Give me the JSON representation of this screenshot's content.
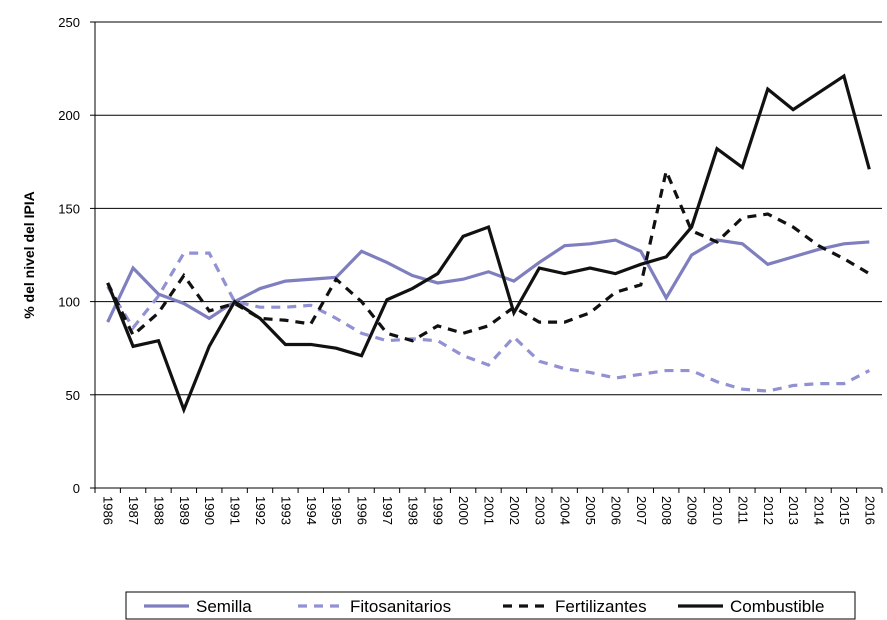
{
  "chart_data": {
    "type": "line",
    "y_label": "% del nivel del IPIA",
    "categories": [
      "1986",
      "1987",
      "1988",
      "1989",
      "1990",
      "1991",
      "1992",
      "1993",
      "1994",
      "1995",
      "1996",
      "1997",
      "1998",
      "1999",
      "2000",
      "2001",
      "2002",
      "2003",
      "2004",
      "2005",
      "2006",
      "2007",
      "2008",
      "2009",
      "2010",
      "2011",
      "2012",
      "2013",
      "2014",
      "2015",
      "2016"
    ],
    "ylim": [
      0,
      250
    ],
    "yticks": [
      0,
      50,
      100,
      150,
      200,
      250
    ],
    "grid": true,
    "series": [
      {
        "name": "Semilla",
        "color": "#7f7fbf",
        "dashed": false,
        "values": [
          89,
          118,
          104,
          99,
          91,
          100,
          107,
          111,
          112,
          113,
          127,
          121,
          114,
          110,
          112,
          116,
          111,
          121,
          130,
          131,
          133,
          127,
          102,
          125,
          133,
          131,
          120,
          124,
          128,
          131,
          132
        ]
      },
      {
        "name": "Fitosanitarios",
        "color": "#9191d3",
        "dashed": true,
        "values": [
          108,
          86,
          103,
          126,
          126,
          100,
          97,
          97,
          98,
          91,
          83,
          79,
          80,
          79,
          71,
          66,
          81,
          68,
          64,
          62,
          59,
          61,
          63,
          63,
          57,
          53,
          52,
          55,
          56,
          56,
          63
        ]
      },
      {
        "name": "Fertilizantes",
        "color": "#111111",
        "dashed": true,
        "values": [
          110,
          82,
          94,
          114,
          95,
          99,
          91,
          90,
          88,
          112,
          100,
          83,
          79,
          87,
          83,
          87,
          97,
          89,
          89,
          94,
          105,
          109,
          170,
          138,
          132,
          145,
          147,
          140,
          130,
          123,
          115
        ]
      },
      {
        "name": "Combustible",
        "color": "#111111",
        "dashed": false,
        "values": [
          110,
          76,
          79,
          42,
          76,
          100,
          91,
          77,
          77,
          75,
          71,
          101,
          107,
          115,
          135,
          140,
          94,
          118,
          115,
          118,
          115,
          120,
          124,
          140,
          182,
          172,
          214,
          203,
          212,
          221,
          171
        ]
      }
    ]
  }
}
